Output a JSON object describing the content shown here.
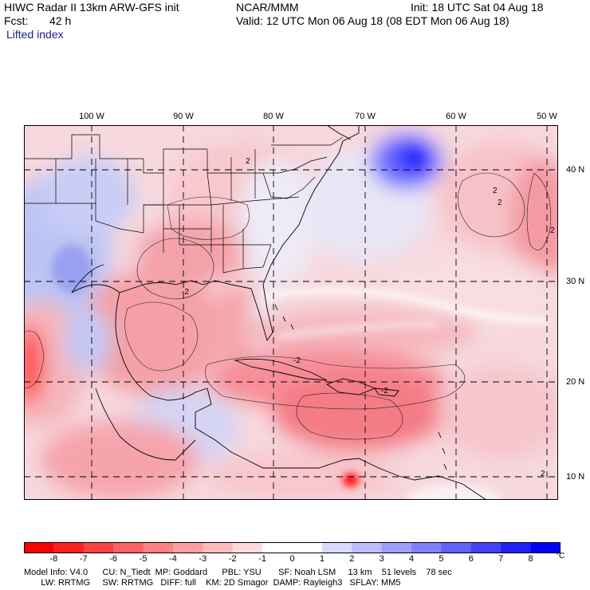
{
  "header": {
    "model_title": "HIWC Radar II 13km ARW-GFS init",
    "org": "NCAR/MMM",
    "init": "Init: 18 UTC Sat 04 Aug 18",
    "fcst_label": "Fcst:",
    "fcst_value": "42 h",
    "valid": "Valid: 12 UTC Mon 06 Aug 18 (08 EDT Mon 06 Aug 18)",
    "field": "Lifted index"
  },
  "map": {
    "lon_labels": [
      "100 W",
      "90 W",
      "80 W",
      "70 W",
      "60 W",
      "50 W"
    ],
    "lat_labels": [
      "40 N",
      "30 N",
      "20 N",
      "10 N"
    ],
    "contour_labels": [
      "2",
      "2",
      "2",
      "2",
      "2",
      "-2",
      "-2",
      "-2"
    ],
    "colors": {
      "land_line": "#000000",
      "grid_line": "#000000"
    }
  },
  "legend": {
    "ticks": [
      "-8",
      "-7",
      "-6",
      "-5",
      "-4",
      "-3",
      "-2",
      "-1",
      "0",
      "1",
      "2",
      "3",
      "4",
      "5",
      "6",
      "7",
      "8"
    ],
    "unit": "°C",
    "colors": [
      "#ff0000",
      "#ff2020",
      "#ff4242",
      "#ff6262",
      "#ff8080",
      "#ff9e9e",
      "#ffbcbc",
      "#ffdada",
      "#ffffff",
      "#ffffff",
      "#dadaff",
      "#bcbcff",
      "#9e9eff",
      "#8080ff",
      "#6262ff",
      "#4242ff",
      "#2020ff",
      "#0000ff"
    ]
  },
  "footer": {
    "line1": "Model Info: V4.0      CU: N_Tiedt  MP: Goddard      PBL: YSU       SF: Noah LSM     13 km    51 levels    78 sec",
    "line2": "       LW: RRTMG     SW: RRTMG   DIFF: full    KM: 2D Smagor  DAMP: Rayleigh3   SFLAY: MM5"
  }
}
